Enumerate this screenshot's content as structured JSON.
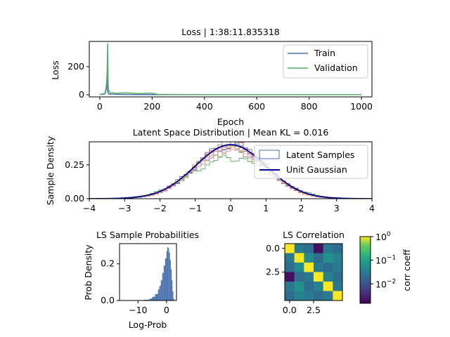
{
  "chart_data": [
    {
      "type": "line",
      "title": "Loss | 1:38:11.835318",
      "xlabel": "Epoch",
      "ylabel": "Loss",
      "xlim": [
        -40,
        1040
      ],
      "ylim": [
        -15,
        380
      ],
      "xticks": [
        "0",
        "200",
        "400",
        "600",
        "800",
        "1000"
      ],
      "yticks": [
        "0",
        "200"
      ],
      "legend_position": "top-right",
      "colors": {
        "train": "#4c72b0",
        "validation": "#55a868"
      },
      "series": [
        {
          "name": "Train",
          "x": [
            0,
            10,
            20,
            25,
            28,
            30,
            32,
            35,
            40,
            60,
            100,
            200,
            400,
            600,
            800,
            1000
          ],
          "y": [
            2,
            3,
            6,
            40,
            130,
            30,
            10,
            5,
            4,
            3,
            2,
            1,
            1,
            1,
            1,
            1
          ]
        },
        {
          "name": "Validation",
          "x": [
            0,
            10,
            20,
            25,
            28,
            30,
            32,
            35,
            40,
            50,
            60,
            80,
            100,
            150,
            200,
            220,
            400,
            600,
            800,
            1000
          ],
          "y": [
            3,
            5,
            10,
            60,
            140,
            365,
            60,
            25,
            12,
            15,
            10,
            12,
            14,
            8,
            12,
            3,
            1,
            1,
            1,
            1
          ]
        }
      ]
    },
    {
      "type": "area",
      "title": "Latent Space Distribution | Mean KL = 0.016",
      "xlabel": "",
      "ylabel": "Sample Density",
      "xlim": [
        -4,
        4
      ],
      "ylim": [
        0,
        0.42
      ],
      "xticks": [
        "−4",
        "−3",
        "−2",
        "−1",
        "0",
        "1",
        "2",
        "3",
        "4"
      ],
      "yticks": [
        "0.00",
        "0.25"
      ],
      "legend_position": "top-right",
      "legend": [
        {
          "name": "Latent Samples",
          "marker": "hollow-box"
        },
        {
          "name": "Unit Gaussian",
          "marker": "line"
        }
      ],
      "gaussian": {
        "mean": 0,
        "std": 1,
        "color": "#00008b"
      },
      "histograms": [
        {
          "color": "#4c72b0",
          "std": 1.0,
          "peak_scale": 0.98
        },
        {
          "color": "#dd8452",
          "std": 0.95,
          "peak_scale": 0.96
        },
        {
          "color": "#55a868",
          "std": 1.1,
          "peak_scale": 0.82
        },
        {
          "color": "#c44e52",
          "std": 0.97,
          "peak_scale": 0.95
        },
        {
          "color": "#8172b3",
          "std": 1.02,
          "peak_scale": 0.93
        },
        {
          "color": "#937860",
          "std": 0.98,
          "peak_scale": 0.94
        },
        {
          "color": "#da8bc3",
          "std": 1.0,
          "peak_scale": 0.9
        },
        {
          "color": "#ccb974",
          "std": 1.04,
          "peak_scale": 0.92
        }
      ]
    },
    {
      "type": "bar",
      "title": "LS Sample Probabilities",
      "xlabel": "Log-Prob",
      "ylabel": "Prob Density",
      "xlim": [
        -16.5,
        3.5
      ],
      "ylim": [
        0,
        0.31
      ],
      "xticks": [
        "−10",
        "0"
      ],
      "yticks": [
        "0.0",
        "0.2"
      ],
      "color": "#4c72b0",
      "x": [
        -11,
        -8,
        -6,
        -5,
        -4,
        -3,
        -2.5,
        -2,
        -1.5,
        -1,
        -0.5,
        0,
        0.3,
        0.6,
        0.9,
        1.2,
        1.5,
        1.8,
        2.1,
        2.4
      ],
      "values": [
        0.001,
        0.004,
        0.01,
        0.02,
        0.035,
        0.06,
        0.08,
        0.11,
        0.15,
        0.19,
        0.23,
        0.27,
        0.29,
        0.285,
        0.26,
        0.22,
        0.17,
        0.11,
        0.05,
        0.01
      ]
    },
    {
      "type": "heatmap",
      "title": "LS Correlation",
      "colorbar_label": "corr coeff",
      "colorbar_scale": "log",
      "xticks": [
        "0.0",
        "2.5"
      ],
      "yticks": [
        "0.0",
        "2.5"
      ],
      "colorbar_ticks": [
        "10^0",
        "10^−1",
        "10^−2"
      ],
      "vmin": 0.0015,
      "vmax": 1.0,
      "matrix": [
        [
          1.0,
          0.03,
          0.02,
          0.002,
          0.03,
          0.02
        ],
        [
          0.03,
          1.0,
          0.05,
          0.02,
          0.06,
          0.04
        ],
        [
          0.02,
          0.05,
          1.0,
          0.03,
          0.02,
          0.03
        ],
        [
          0.002,
          0.02,
          0.03,
          1.0,
          0.04,
          0.02
        ],
        [
          0.03,
          0.06,
          0.02,
          0.04,
          1.0,
          0.03
        ],
        [
          0.02,
          0.04,
          0.03,
          0.02,
          0.03,
          1.0
        ]
      ]
    }
  ]
}
